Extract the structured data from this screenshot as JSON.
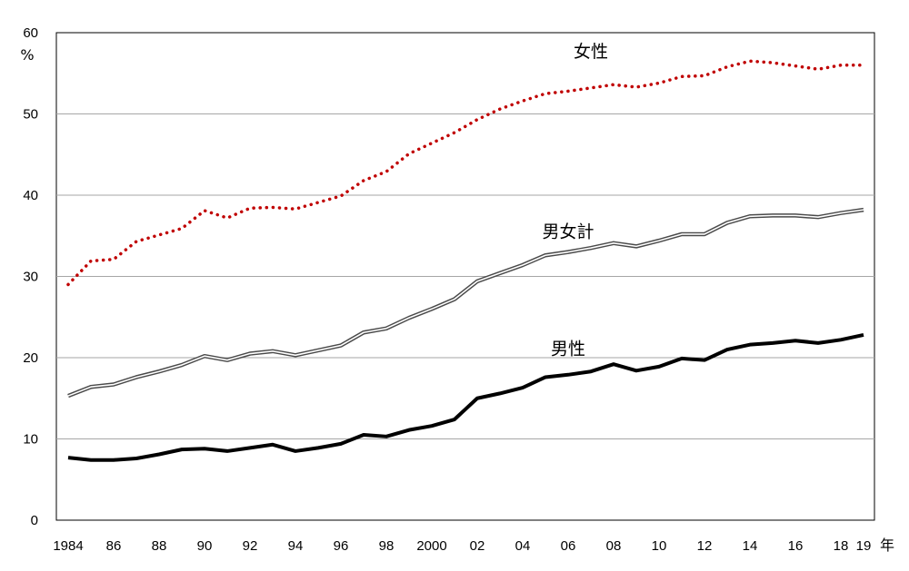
{
  "chart_data": {
    "type": "line",
    "ylabel": "%",
    "xlabel": "年",
    "ylim": [
      0,
      60
    ],
    "yticks": [
      0,
      10,
      20,
      30,
      40,
      50,
      60
    ],
    "grid": "horizontal",
    "legend": "inline labels",
    "x": [
      1984,
      1985,
      1986,
      1987,
      1988,
      1989,
      1990,
      1991,
      1992,
      1993,
      1994,
      1995,
      1996,
      1997,
      1998,
      1999,
      2000,
      2001,
      2002,
      2003,
      2004,
      2005,
      2006,
      2007,
      2008,
      2009,
      2010,
      2011,
      2012,
      2013,
      2014,
      2015,
      2016,
      2017,
      2018,
      2019
    ],
    "xtick_labels": [
      {
        "year": 1984,
        "label": "1984"
      },
      {
        "year": 1986,
        "label": "86"
      },
      {
        "year": 1988,
        "label": "88"
      },
      {
        "year": 1990,
        "label": "90"
      },
      {
        "year": 1992,
        "label": "92"
      },
      {
        "year": 1994,
        "label": "94"
      },
      {
        "year": 1996,
        "label": "96"
      },
      {
        "year": 1998,
        "label": "98"
      },
      {
        "year": 2000,
        "label": "2000"
      },
      {
        "year": 2002,
        "label": "02"
      },
      {
        "year": 2004,
        "label": "04"
      },
      {
        "year": 2006,
        "label": "06"
      },
      {
        "year": 2008,
        "label": "08"
      },
      {
        "year": 2010,
        "label": "10"
      },
      {
        "year": 2012,
        "label": "12"
      },
      {
        "year": 2014,
        "label": "14"
      },
      {
        "year": 2016,
        "label": "16"
      },
      {
        "year": 2018,
        "label": "18"
      },
      {
        "year": 2019,
        "label": "19"
      }
    ],
    "series": [
      {
        "name": "女性",
        "style": "dotted",
        "color": "#c00000",
        "label_at": {
          "year": 2007.0,
          "value": 57.0
        },
        "values": [
          29.0,
          31.9,
          32.1,
          34.3,
          35.1,
          35.9,
          38.1,
          37.2,
          38.4,
          38.5,
          38.3,
          39.1,
          39.9,
          41.8,
          42.9,
          45.1,
          46.4,
          47.7,
          49.3,
          50.6,
          51.6,
          52.5,
          52.8,
          53.2,
          53.6,
          53.3,
          53.8,
          54.6,
          54.7,
          55.8,
          56.5,
          56.3,
          55.9,
          55.5,
          56.0,
          56.0
        ]
      },
      {
        "name": "男女計",
        "style": "double",
        "color": "#4a4a4a",
        "label_at": {
          "year": 2006.0,
          "value": 34.8
        },
        "values": [
          15.3,
          16.4,
          16.7,
          17.6,
          18.3,
          19.1,
          20.2,
          19.7,
          20.5,
          20.8,
          20.3,
          20.9,
          21.5,
          23.1,
          23.6,
          24.9,
          26.0,
          27.2,
          29.4,
          30.4,
          31.4,
          32.6,
          33.0,
          33.5,
          34.1,
          33.7,
          34.4,
          35.2,
          35.2,
          36.6,
          37.4,
          37.5,
          37.5,
          37.3,
          37.8,
          38.2
        ]
      },
      {
        "name": "男性",
        "style": "solid",
        "color": "#000000",
        "label_at": {
          "year": 2006.0,
          "value": 20.4
        },
        "values": [
          7.7,
          7.4,
          7.4,
          7.6,
          8.1,
          8.7,
          8.8,
          8.5,
          8.9,
          9.3,
          8.5,
          8.9,
          9.4,
          10.5,
          10.3,
          11.1,
          11.6,
          12.4,
          15.0,
          15.6,
          16.3,
          17.6,
          17.9,
          18.3,
          19.2,
          18.4,
          18.9,
          19.9,
          19.7,
          21.0,
          21.6,
          21.8,
          22.1,
          21.8,
          22.2,
          22.8
        ]
      }
    ]
  }
}
